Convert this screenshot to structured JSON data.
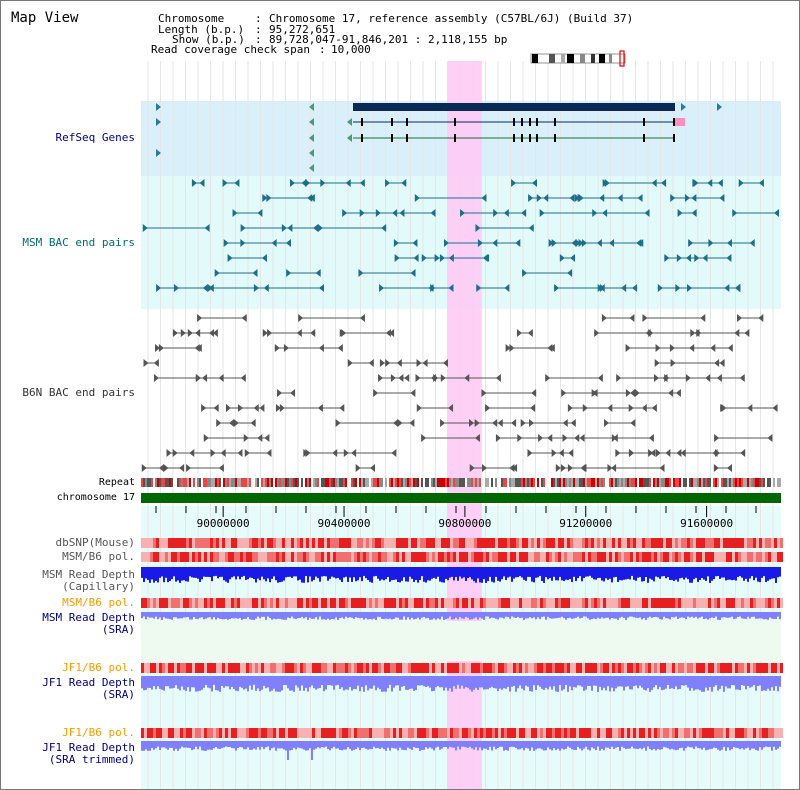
{
  "view_title": "Map View",
  "info": {
    "chromosome_label": "Chromosome",
    "chromosome_value": "Chromosome 17, reference assembly (C57BL/6J) (Build 37)",
    "length_label": "Length (b.p.)",
    "length_value": "95,272,651",
    "show_label": "Show (b.p.)",
    "show_value": "89,728,047-91,846,201 : 2,118,155 bp",
    "coverage_label": "Read coverage check span",
    "coverage_value": "10,000"
  },
  "axis": {
    "start_bp": 89728047,
    "end_bp": 91846201,
    "tick_labels": [
      "90000000",
      "90400000",
      "90800000",
      "91200000",
      "91600000"
    ],
    "tick_values": [
      90000000,
      90400000,
      90800000,
      91200000,
      91600000
    ],
    "highlight_bp": [
      90741000,
      90856000
    ]
  },
  "tracks": {
    "refseq": "RefSeq Genes",
    "msm_bac": "MSM BAC end pairs",
    "b6n_bac": "B6N BAC end pairs",
    "repeat": "Repeat",
    "chromosome": "chromosome 17",
    "dbsnp": "dbSNP(Mouse)",
    "msm_b6_pol_1": "MSM/B6 pol.",
    "msm_depth_cap_1": "MSM Read Depth",
    "msm_depth_cap_2": "(Capillary)",
    "msm_b6_pol_2": "MSM/B6 pol.",
    "msm_depth_sra_1": "MSM Read Depth",
    "msm_depth_sra_2": "(SRA)",
    "jf1_b6_pol_1": "JF1/B6 pol.",
    "jf1_depth_sra_1": "JF1 Read Depth",
    "jf1_depth_sra_2": "(SRA)",
    "jf1_b6_pol_2": "JF1/B6 pol.",
    "jf1_depth_trim_1": "JF1 Read Depth",
    "jf1_depth_trim_2": "(SRA trimmed)"
  },
  "colors": {
    "track_label_blue": "#000080",
    "msm_label_teal": "#006e6e",
    "b6n_label_gray": "#333333",
    "pol_label_orange": "#ff9900",
    "refseq_bg": "#d9f0fa",
    "msm_bg": "#e3fafa",
    "lower_bg": "#e6fcfa",
    "highlight": "#ffc8f5",
    "gene_dark": "#0a2a55",
    "bac_teal": "#1e6f8c",
    "bac_gray": "#555555",
    "chromosome_green": "#006600",
    "depth_blue": "#1a1ae6",
    "depth_light": "#8080ff"
  }
}
